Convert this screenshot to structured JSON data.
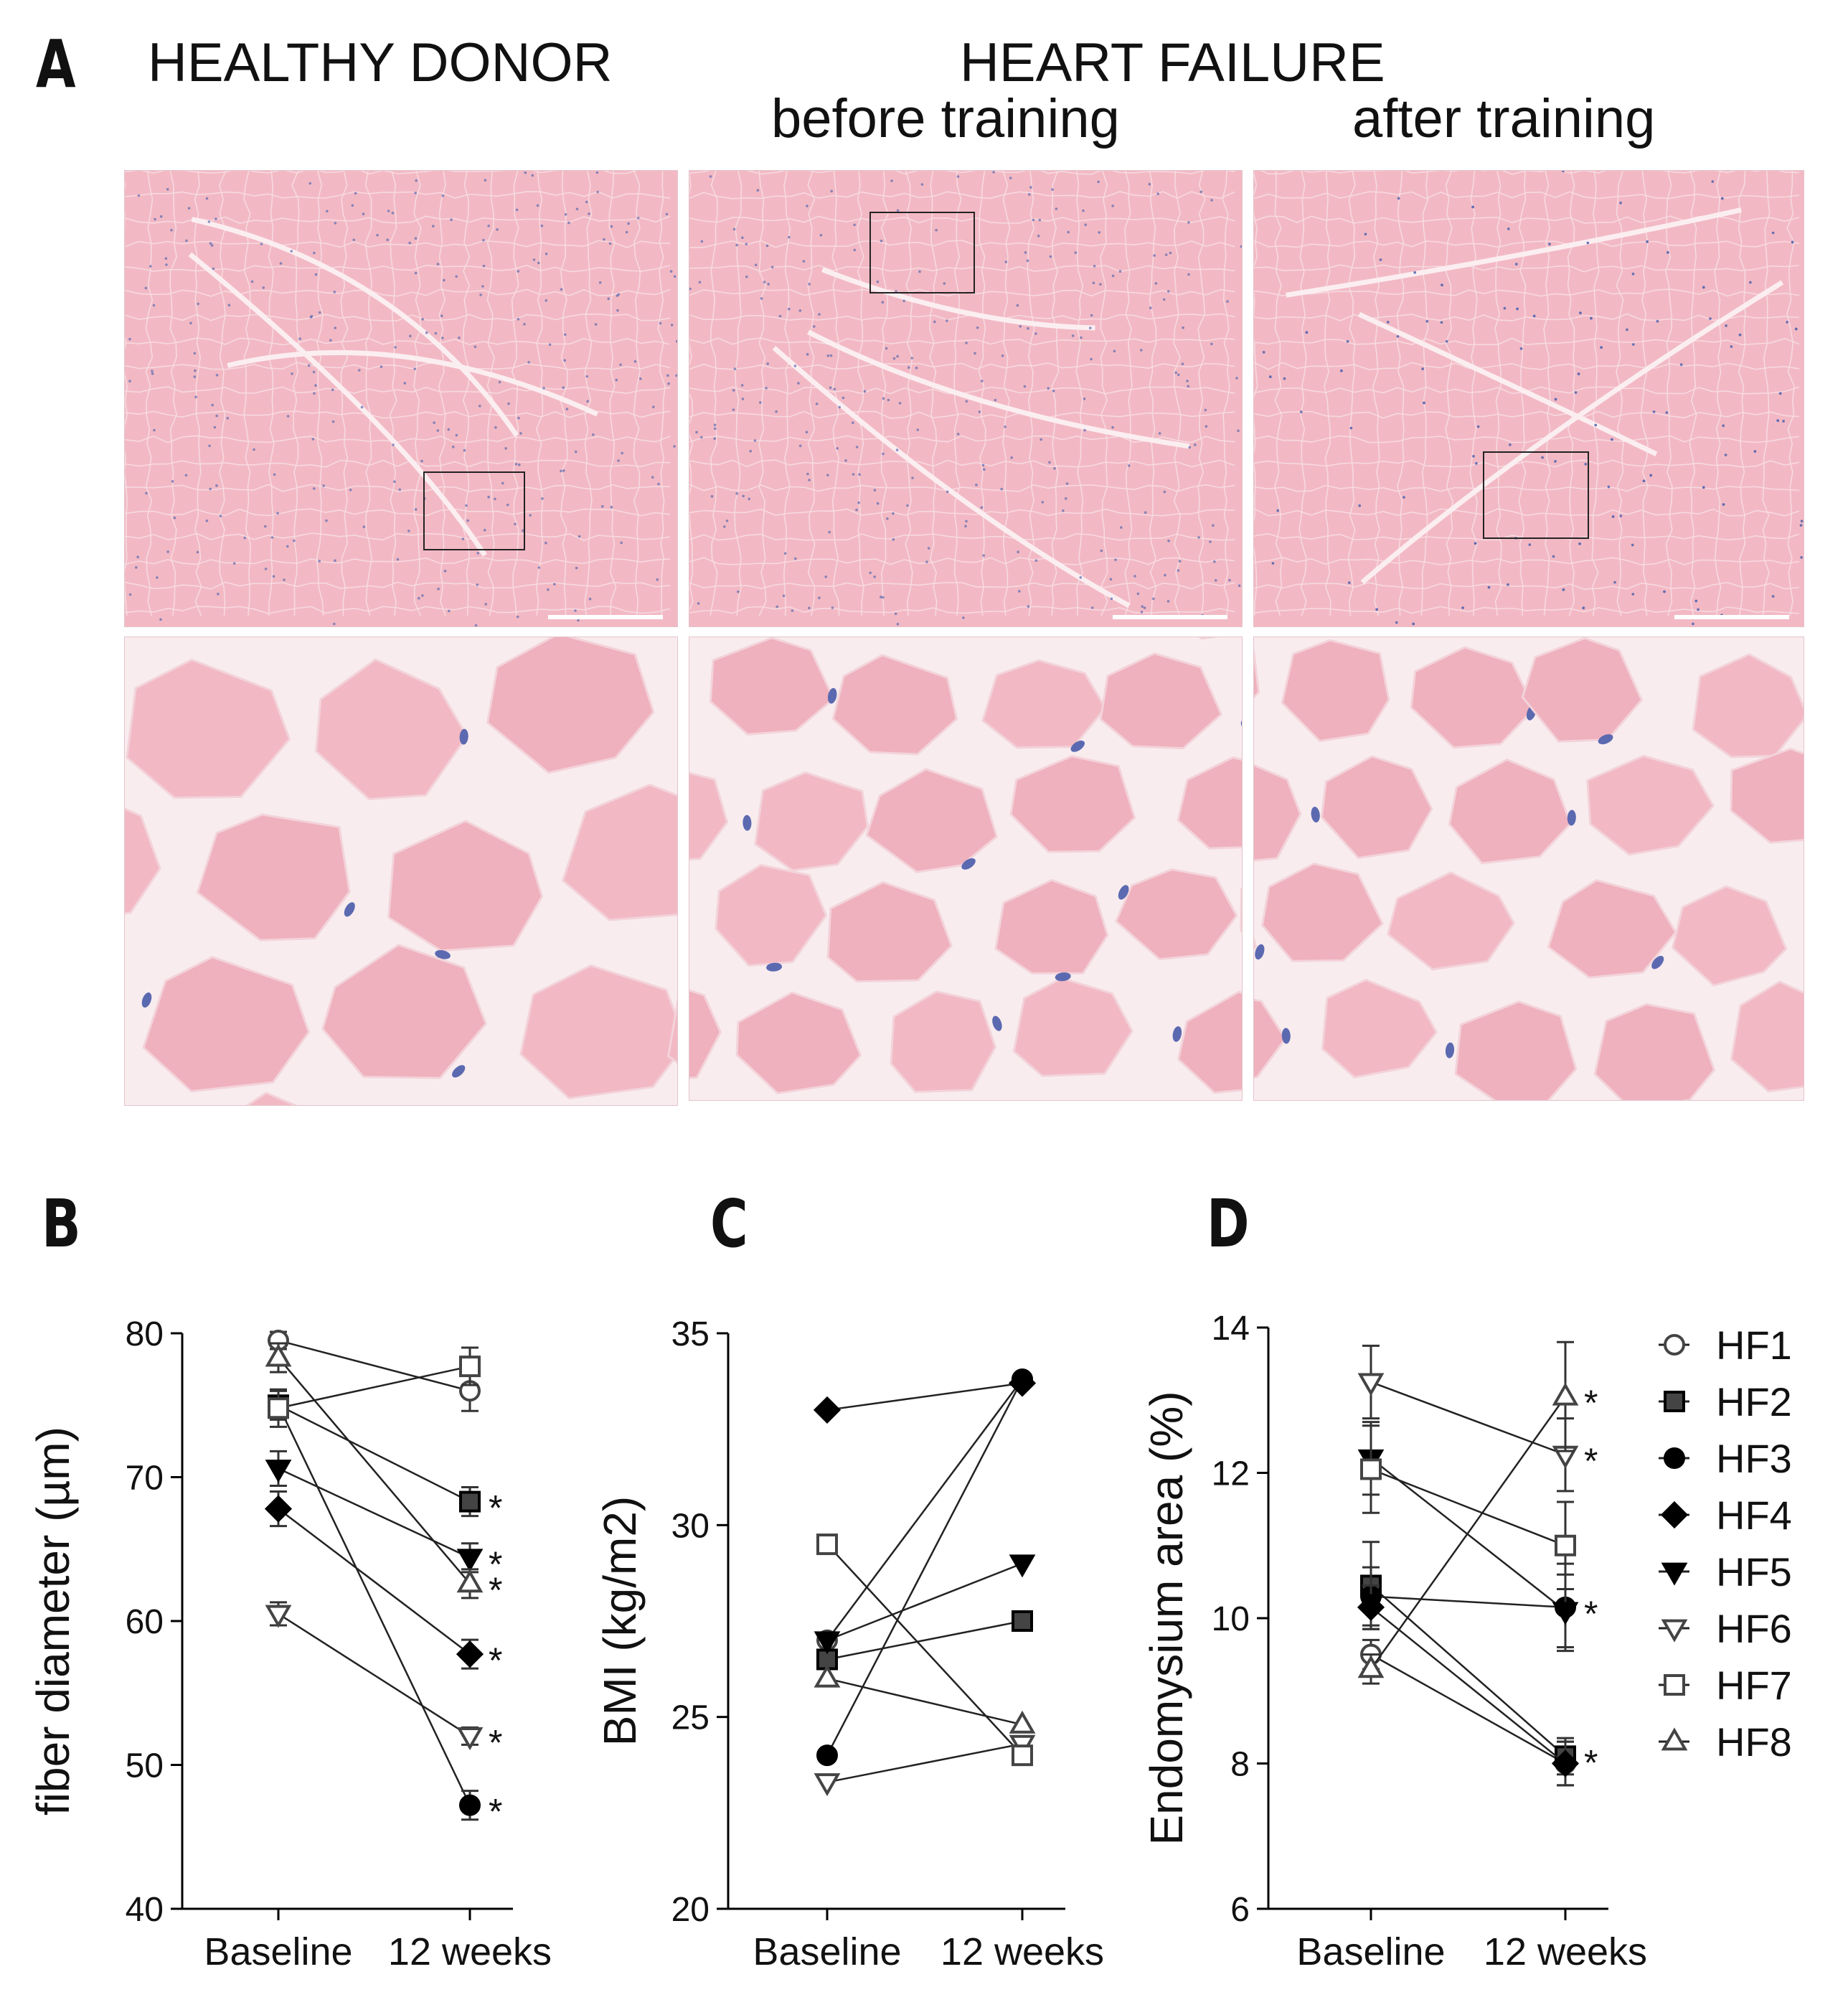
{
  "panel_labels": {
    "a": "A",
    "b": "B",
    "c": "C",
    "d": "D"
  },
  "panel_a": {
    "headers": {
      "healthy": "HEALTHY DONOR",
      "hf": "HEART FAILURE",
      "before": "before training",
      "after": "after training"
    },
    "colors": {
      "tissue": "#f2b9c4",
      "tissue_dark": "#e79aaa",
      "nuclei": "#5b69b0",
      "connective": "#f8ecef"
    }
  },
  "chart_data": [
    {
      "id": "B",
      "type": "line",
      "ylabel": "fiber diameter (µm)",
      "xlabel": "",
      "categories": [
        "Baseline",
        "12 weeks"
      ],
      "ylim": [
        40,
        80
      ],
      "yticks": [
        "40",
        "50",
        "60",
        "70",
        "80"
      ],
      "grid": false,
      "series": [
        {
          "name": "HF1",
          "marker": "circle-open",
          "values": [
            79.5,
            76.0
          ],
          "err": [
            0.6,
            1.4
          ],
          "sig": ""
        },
        {
          "name": "HF2",
          "marker": "square-filled",
          "values": [
            75.0,
            68.3
          ],
          "err": [
            1.0,
            1.0
          ],
          "sig": "*"
        },
        {
          "name": "HF3",
          "marker": "circle-filled",
          "values": [
            75.0,
            47.2
          ],
          "err": [
            1.0,
            1.0
          ],
          "sig": "*"
        },
        {
          "name": "HF4",
          "marker": "diamond-filled",
          "values": [
            67.8,
            57.7
          ],
          "err": [
            1.2,
            1.0
          ],
          "sig": "*"
        },
        {
          "name": "HF5",
          "marker": "tridown-filled",
          "values": [
            70.6,
            64.4
          ],
          "err": [
            1.2,
            1.0
          ],
          "sig": "*"
        },
        {
          "name": "HF6",
          "marker": "tridown-open",
          "values": [
            60.5,
            52.0
          ],
          "err": [
            0.8,
            0.6
          ],
          "sig": "*"
        },
        {
          "name": "HF7",
          "marker": "square-open",
          "values": [
            74.8,
            77.7
          ],
          "err": [
            1.3,
            1.3
          ],
          "sig": ""
        },
        {
          "name": "HF8",
          "marker": "triup-open",
          "values": [
            78.3,
            62.6
          ],
          "err": [
            1.0,
            1.0
          ],
          "sig": "*"
        }
      ]
    },
    {
      "id": "C",
      "type": "line",
      "ylabel": "BMI (kg/m2)",
      "xlabel": "",
      "categories": [
        "Baseline",
        "12 weeks"
      ],
      "ylim": [
        20,
        35
      ],
      "yticks": [
        "20",
        "25",
        "30",
        "35"
      ],
      "grid": false,
      "series": [
        {
          "name": "HF1",
          "marker": "circle-open",
          "values": [
            27.0,
            33.8
          ],
          "err": [
            0,
            0
          ],
          "sig": ""
        },
        {
          "name": "HF2",
          "marker": "square-filled",
          "values": [
            26.5,
            27.5
          ],
          "err": [
            0,
            0
          ],
          "sig": ""
        },
        {
          "name": "HF3",
          "marker": "circle-filled",
          "values": [
            24.0,
            33.8
          ],
          "err": [
            0,
            0
          ],
          "sig": ""
        },
        {
          "name": "HF4",
          "marker": "diamond-filled",
          "values": [
            33.0,
            33.7
          ],
          "err": [
            0,
            0
          ],
          "sig": ""
        },
        {
          "name": "HF5",
          "marker": "tridown-filled",
          "values": [
            27.0,
            29.0
          ],
          "err": [
            0,
            0
          ],
          "sig": ""
        },
        {
          "name": "HF6",
          "marker": "tridown-open",
          "values": [
            23.3,
            24.3
          ],
          "err": [
            0,
            0
          ],
          "sig": ""
        },
        {
          "name": "HF7",
          "marker": "square-open",
          "values": [
            29.5,
            24.0
          ],
          "err": [
            0,
            0
          ],
          "sig": ""
        },
        {
          "name": "HF8",
          "marker": "triup-open",
          "values": [
            26.0,
            24.8
          ],
          "err": [
            0,
            0
          ],
          "sig": ""
        }
      ]
    },
    {
      "id": "D",
      "type": "line",
      "ylabel": "Endomysium area (%)",
      "xlabel": "",
      "categories": [
        "Baseline",
        "12 weeks"
      ],
      "ylim": [
        6,
        14
      ],
      "yticks": [
        "6",
        "8",
        "10",
        "12",
        "14"
      ],
      "grid": false,
      "series": [
        {
          "name": "HF1",
          "marker": "circle-open",
          "values": [
            9.5,
            8.0
          ],
          "err": [
            0.2,
            0.3
          ],
          "sig": ""
        },
        {
          "name": "HF2",
          "marker": "square-filled",
          "values": [
            10.45,
            8.1
          ],
          "err": [
            0.6,
            0.25
          ],
          "sig": "*"
        },
        {
          "name": "HF3",
          "marker": "circle-filled",
          "values": [
            10.3,
            10.15
          ],
          "err": [
            0.4,
            0.6
          ],
          "sig": "*"
        },
        {
          "name": "HF4",
          "marker": "diamond-filled",
          "values": [
            10.15,
            8.0
          ],
          "err": [
            0.3,
            0.3
          ],
          "sig": ""
        },
        {
          "name": "HF5",
          "marker": "tridown-filled",
          "values": [
            12.2,
            10.1
          ],
          "err": [
            0.5,
            0.5
          ],
          "sig": ""
        },
        {
          "name": "HF6",
          "marker": "tridown-open",
          "values": [
            13.25,
            12.25
          ],
          "err": [
            0.5,
            0.5
          ],
          "sig": "*"
        },
        {
          "name": "HF7",
          "marker": "square-open",
          "values": [
            12.05,
            11.0
          ],
          "err": [
            0.6,
            0.6
          ],
          "sig": ""
        },
        {
          "name": "HF8",
          "marker": "triup-open",
          "values": [
            9.3,
            13.05
          ],
          "err": [
            0.2,
            0.75
          ],
          "sig": "*"
        }
      ]
    }
  ],
  "legend": [
    {
      "name": "HF1",
      "marker": "circle-open"
    },
    {
      "name": "HF2",
      "marker": "square-filled"
    },
    {
      "name": "HF3",
      "marker": "circle-filled"
    },
    {
      "name": "HF4",
      "marker": "diamond-filled"
    },
    {
      "name": "HF5",
      "marker": "tridown-filled"
    },
    {
      "name": "HF6",
      "marker": "tridown-open"
    },
    {
      "name": "HF7",
      "marker": "square-open"
    },
    {
      "name": "HF8",
      "marker": "triup-open"
    }
  ]
}
